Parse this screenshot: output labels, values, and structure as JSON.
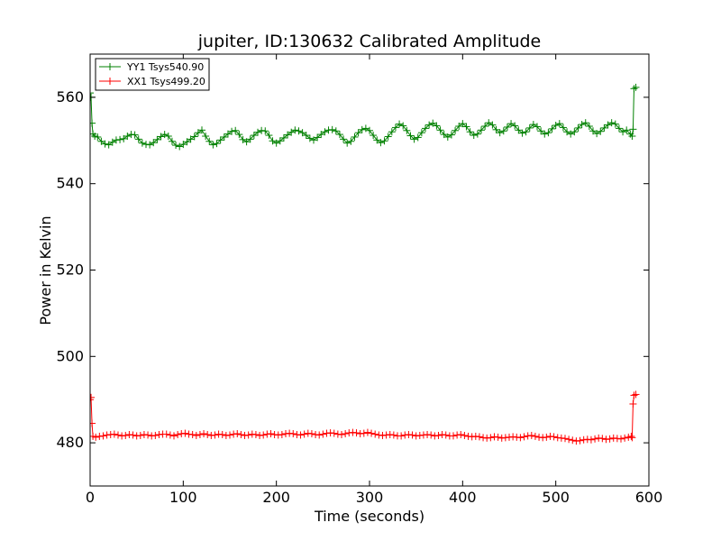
{
  "chart_data": {
    "type": "line",
    "title": "jupiter, ID:130632 Calibrated Amplitude",
    "xlabel": "Time (seconds)",
    "ylabel": "Power in Kelvin",
    "xlim": [
      0,
      600
    ],
    "ylim": [
      470,
      570
    ],
    "xticks": [
      "0",
      "100",
      "200",
      "300",
      "400",
      "500",
      "600"
    ],
    "yticks": [
      "480",
      "500",
      "520",
      "540",
      "560"
    ],
    "grid": false,
    "legend_position": "top-left",
    "marker": "+",
    "series": [
      {
        "name": "YY1 Tsys540.90",
        "color": "#008000",
        "points": [
          [
            0,
            561
          ],
          [
            1,
            560
          ],
          [
            2,
            554
          ],
          [
            3,
            551.5
          ],
          [
            5,
            551
          ],
          [
            8,
            550.8
          ],
          [
            12,
            549.8
          ],
          [
            16,
            549.2
          ],
          [
            20,
            549
          ],
          [
            24,
            549.6
          ],
          [
            28,
            550.1
          ],
          [
            32,
            550.2
          ],
          [
            36,
            550.4
          ],
          [
            40,
            551
          ],
          [
            44,
            551.4
          ],
          [
            48,
            551.3
          ],
          [
            52,
            550.3
          ],
          [
            56,
            549.4
          ],
          [
            60,
            549.1
          ],
          [
            64,
            549
          ],
          [
            68,
            549.5
          ],
          [
            72,
            550.2
          ],
          [
            76,
            550.9
          ],
          [
            80,
            551.4
          ],
          [
            84,
            551
          ],
          [
            88,
            549.8
          ],
          [
            92,
            548.9
          ],
          [
            96,
            548.6
          ],
          [
            100,
            549.1
          ],
          [
            104,
            549.7
          ],
          [
            108,
            550.3
          ],
          [
            112,
            550.9
          ],
          [
            116,
            551.8
          ],
          [
            120,
            552.4
          ],
          [
            124,
            551
          ],
          [
            128,
            549.8
          ],
          [
            132,
            549
          ],
          [
            136,
            549.3
          ],
          [
            140,
            550.1
          ],
          [
            144,
            550.8
          ],
          [
            148,
            551.5
          ],
          [
            152,
            552.1
          ],
          [
            156,
            552.3
          ],
          [
            160,
            551.4
          ],
          [
            164,
            550.2
          ],
          [
            168,
            549.7
          ],
          [
            172,
            550.3
          ],
          [
            176,
            551.2
          ],
          [
            180,
            551.9
          ],
          [
            184,
            552.3
          ],
          [
            188,
            552.2
          ],
          [
            192,
            551.2
          ],
          [
            196,
            549.9
          ],
          [
            200,
            549.4
          ],
          [
            204,
            549.9
          ],
          [
            208,
            550.6
          ],
          [
            212,
            551.3
          ],
          [
            216,
            551.9
          ],
          [
            220,
            552.4
          ],
          [
            224,
            552.2
          ],
          [
            228,
            551.8
          ],
          [
            232,
            551.2
          ],
          [
            236,
            550.5
          ],
          [
            240,
            550.1
          ],
          [
            244,
            550.7
          ],
          [
            248,
            551.4
          ],
          [
            252,
            552
          ],
          [
            256,
            552.4
          ],
          [
            260,
            552.5
          ],
          [
            264,
            552.2
          ],
          [
            268,
            551.4
          ],
          [
            272,
            550.3
          ],
          [
            276,
            549.4
          ],
          [
            280,
            549.8
          ],
          [
            284,
            550.8
          ],
          [
            288,
            551.8
          ],
          [
            292,
            552.5
          ],
          [
            296,
            552.8
          ],
          [
            300,
            552.3
          ],
          [
            304,
            551.2
          ],
          [
            308,
            550.1
          ],
          [
            312,
            549.5
          ],
          [
            316,
            549.9
          ],
          [
            320,
            550.9
          ],
          [
            324,
            552
          ],
          [
            328,
            553
          ],
          [
            332,
            553.8
          ],
          [
            336,
            553.4
          ],
          [
            340,
            552.3
          ],
          [
            344,
            551.1
          ],
          [
            348,
            550.3
          ],
          [
            352,
            550.7
          ],
          [
            356,
            551.8
          ],
          [
            360,
            552.8
          ],
          [
            364,
            553.6
          ],
          [
            368,
            554
          ],
          [
            372,
            553.4
          ],
          [
            376,
            552.4
          ],
          [
            380,
            551.4
          ],
          [
            384,
            550.8
          ],
          [
            388,
            551.3
          ],
          [
            392,
            552.3
          ],
          [
            396,
            553.3
          ],
          [
            400,
            553.9
          ],
          [
            404,
            553.2
          ],
          [
            408,
            552
          ],
          [
            412,
            551.2
          ],
          [
            416,
            551.5
          ],
          [
            420,
            552.4
          ],
          [
            424,
            553.3
          ],
          [
            428,
            554.1
          ],
          [
            432,
            553.6
          ],
          [
            436,
            552.5
          ],
          [
            440,
            551.8
          ],
          [
            444,
            552.2
          ],
          [
            448,
            553.1
          ],
          [
            452,
            553.9
          ],
          [
            456,
            553.4
          ],
          [
            460,
            552.4
          ],
          [
            464,
            551.7
          ],
          [
            468,
            552
          ],
          [
            472,
            552.9
          ],
          [
            476,
            553.7
          ],
          [
            480,
            553.2
          ],
          [
            484,
            552.2
          ],
          [
            488,
            551.5
          ],
          [
            492,
            551.8
          ],
          [
            496,
            552.7
          ],
          [
            500,
            553.5
          ],
          [
            504,
            553.9
          ],
          [
            508,
            553
          ],
          [
            512,
            552
          ],
          [
            516,
            551.5
          ],
          [
            520,
            552
          ],
          [
            524,
            552.9
          ],
          [
            528,
            553.7
          ],
          [
            532,
            554.1
          ],
          [
            536,
            553.3
          ],
          [
            540,
            552.2
          ],
          [
            544,
            551.6
          ],
          [
            548,
            552.1
          ],
          [
            552,
            552.9
          ],
          [
            556,
            553.6
          ],
          [
            560,
            554.1
          ],
          [
            564,
            553.8
          ],
          [
            568,
            552.8
          ],
          [
            572,
            552
          ],
          [
            576,
            552.4
          ],
          [
            580,
            551.5
          ],
          [
            582,
            551
          ],
          [
            583,
            552.6
          ],
          [
            584,
            562
          ],
          [
            586,
            562.3
          ]
        ]
      },
      {
        "name": "XX1 Tsys499.20",
        "color": "#ff0000",
        "points": [
          [
            0,
            490
          ],
          [
            1,
            490.5
          ],
          [
            2,
            484.5
          ],
          [
            3,
            481.5
          ],
          [
            6,
            481.3
          ],
          [
            10,
            481.5
          ],
          [
            14,
            481.6
          ],
          [
            18,
            481.8
          ],
          [
            22,
            481.9
          ],
          [
            26,
            482
          ],
          [
            30,
            481.8
          ],
          [
            34,
            481.6
          ],
          [
            38,
            481.7
          ],
          [
            42,
            481.9
          ],
          [
            46,
            481.8
          ],
          [
            50,
            481.6
          ],
          [
            54,
            481.7
          ],
          [
            58,
            481.9
          ],
          [
            62,
            481.8
          ],
          [
            66,
            481.6
          ],
          [
            70,
            481.7
          ],
          [
            74,
            481.9
          ],
          [
            78,
            482
          ],
          [
            82,
            482
          ],
          [
            86,
            481.8
          ],
          [
            90,
            481.6
          ],
          [
            94,
            481.9
          ],
          [
            98,
            482.1
          ],
          [
            102,
            482.2
          ],
          [
            106,
            482
          ],
          [
            110,
            481.9
          ],
          [
            114,
            481.7
          ],
          [
            118,
            481.9
          ],
          [
            122,
            482.1
          ],
          [
            126,
            481.9
          ],
          [
            130,
            481.7
          ],
          [
            134,
            481.8
          ],
          [
            138,
            482
          ],
          [
            142,
            481.9
          ],
          [
            146,
            481.7
          ],
          [
            150,
            481.8
          ],
          [
            154,
            482
          ],
          [
            158,
            482.1
          ],
          [
            162,
            481.9
          ],
          [
            166,
            481.7
          ],
          [
            170,
            481.8
          ],
          [
            174,
            482
          ],
          [
            178,
            481.9
          ],
          [
            182,
            481.7
          ],
          [
            186,
            481.8
          ],
          [
            190,
            482
          ],
          [
            194,
            482.1
          ],
          [
            198,
            481.9
          ],
          [
            202,
            481.8
          ],
          [
            206,
            481.9
          ],
          [
            210,
            482.1
          ],
          [
            214,
            482.2
          ],
          [
            218,
            482.1
          ],
          [
            222,
            481.9
          ],
          [
            226,
            481.8
          ],
          [
            230,
            482
          ],
          [
            234,
            482.2
          ],
          [
            238,
            482.1
          ],
          [
            242,
            481.9
          ],
          [
            246,
            481.8
          ],
          [
            250,
            482
          ],
          [
            254,
            482.2
          ],
          [
            258,
            482.3
          ],
          [
            262,
            482.2
          ],
          [
            266,
            482
          ],
          [
            270,
            481.9
          ],
          [
            274,
            482.1
          ],
          [
            278,
            482.3
          ],
          [
            282,
            482.4
          ],
          [
            286,
            482.3
          ],
          [
            290,
            482.1
          ],
          [
            294,
            482.2
          ],
          [
            298,
            482.4
          ],
          [
            302,
            482.2
          ],
          [
            306,
            482
          ],
          [
            310,
            481.8
          ],
          [
            314,
            481.7
          ],
          [
            318,
            481.8
          ],
          [
            322,
            481.9
          ],
          [
            326,
            481.8
          ],
          [
            330,
            481.6
          ],
          [
            334,
            481.6
          ],
          [
            338,
            481.8
          ],
          [
            342,
            481.9
          ],
          [
            346,
            481.8
          ],
          [
            350,
            481.6
          ],
          [
            354,
            481.7
          ],
          [
            358,
            481.8
          ],
          [
            362,
            481.9
          ],
          [
            366,
            481.8
          ],
          [
            370,
            481.6
          ],
          [
            374,
            481.7
          ],
          [
            378,
            481.9
          ],
          [
            382,
            481.8
          ],
          [
            386,
            481.6
          ],
          [
            390,
            481.6
          ],
          [
            394,
            481.8
          ],
          [
            398,
            481.9
          ],
          [
            402,
            481.7
          ],
          [
            406,
            481.5
          ],
          [
            410,
            481.4
          ],
          [
            414,
            481.5
          ],
          [
            418,
            481.4
          ],
          [
            422,
            481.2
          ],
          [
            426,
            481.1
          ],
          [
            430,
            481.2
          ],
          [
            434,
            481.4
          ],
          [
            438,
            481.3
          ],
          [
            442,
            481.1
          ],
          [
            446,
            481.2
          ],
          [
            450,
            481.3
          ],
          [
            454,
            481.4
          ],
          [
            458,
            481.3
          ],
          [
            462,
            481.2
          ],
          [
            466,
            481.4
          ],
          [
            470,
            481.6
          ],
          [
            474,
            481.7
          ],
          [
            478,
            481.5
          ],
          [
            482,
            481.3
          ],
          [
            486,
            481.2
          ],
          [
            490,
            481.3
          ],
          [
            494,
            481.5
          ],
          [
            498,
            481.4
          ],
          [
            502,
            481.2
          ],
          [
            506,
            481.1
          ],
          [
            510,
            481
          ],
          [
            514,
            480.8
          ],
          [
            518,
            480.6
          ],
          [
            522,
            480.4
          ],
          [
            526,
            480.5
          ],
          [
            530,
            480.7
          ],
          [
            534,
            480.8
          ],
          [
            538,
            480.7
          ],
          [
            542,
            480.9
          ],
          [
            546,
            481.1
          ],
          [
            550,
            481
          ],
          [
            554,
            480.8
          ],
          [
            558,
            480.9
          ],
          [
            562,
            481.1
          ],
          [
            566,
            481
          ],
          [
            570,
            480.9
          ],
          [
            574,
            481.1
          ],
          [
            578,
            481.3
          ],
          [
            581,
            481.5
          ],
          [
            582,
            481.2
          ],
          [
            583,
            489
          ],
          [
            584,
            491
          ],
          [
            586,
            491.2
          ]
        ]
      }
    ]
  }
}
